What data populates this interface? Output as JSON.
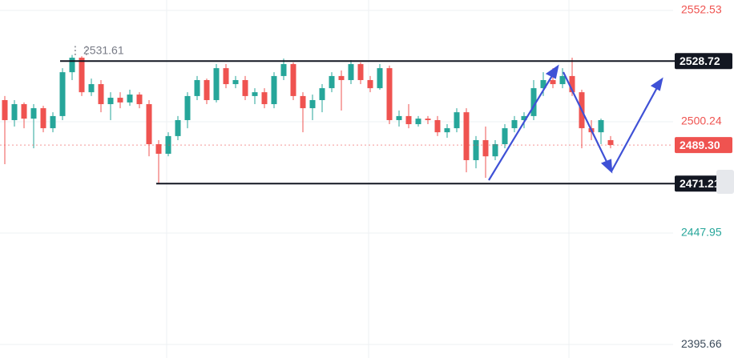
{
  "chart_data": {
    "type": "candlestick",
    "up_color": "#26a69a",
    "down_color": "#ef5350",
    "open": [
      2510.4,
      2501.0,
      2508.5,
      2501.7,
      2506.6,
      2497.2,
      2502.9,
      2523.5,
      2530.3,
      2514.1,
      2517.9,
      2508.5,
      2511.5,
      2509.3,
      2513.0,
      2508.5,
      2489.7,
      2485.2,
      2493.5,
      2501.0,
      2512.3,
      2519.8,
      2510.4,
      2525.4,
      2517.9,
      2519.8,
      2512.3,
      2514.1,
      2508.5,
      2521.7,
      2527.3,
      2512.3,
      2506.6,
      2510.4,
      2516.0,
      2521.7,
      2519.8,
      2527.3,
      2519.8,
      2516.0,
      2525.4,
      2501.0,
      2502.9,
      2499.1,
      2501.7,
      2501.0,
      2495.3,
      2497.2,
      2504.7,
      2482.2,
      2491.6,
      2484.0,
      2489.7,
      2497.2,
      2501.0,
      2502.9,
      2516.0,
      2519.8,
      2517.9,
      2521.7,
      2514.1,
      2497.2,
      2495.3,
      2491.6
    ],
    "high": [
      2512.3,
      2510.4,
      2509.3,
      2508.5,
      2507.7,
      2504.7,
      2525.4,
      2531.61,
      2531.0,
      2520.5,
      2519.8,
      2514.1,
      2514.1,
      2515.3,
      2514.1,
      2510.4,
      2491.6,
      2495.3,
      2502.9,
      2514.1,
      2521.7,
      2520.5,
      2527.3,
      2527.3,
      2521.7,
      2521.7,
      2516.0,
      2516.0,
      2523.5,
      2529.9,
      2528.1,
      2514.1,
      2513.0,
      2517.9,
      2523.5,
      2524.3,
      2529.2,
      2528.1,
      2521.7,
      2527.3,
      2526.6,
      2505.5,
      2508.5,
      2502.9,
      2502.9,
      2502.9,
      2499.1,
      2506.6,
      2506.6,
      2493.5,
      2498.0,
      2491.6,
      2499.1,
      2502.9,
      2504.7,
      2519.8,
      2523.5,
      2525.4,
      2525.4,
      2530.3,
      2515.3,
      2501.0,
      2501.7,
      2493.5
    ],
    "low": [
      2480.3,
      2498.0,
      2497.2,
      2487.8,
      2495.3,
      2495.3,
      2501.0,
      2519.8,
      2512.3,
      2512.3,
      2504.7,
      2501.0,
      2506.6,
      2507.7,
      2506.6,
      2484.0,
      2471.2,
      2484.0,
      2491.6,
      2497.2,
      2510.4,
      2508.5,
      2509.3,
      2516.0,
      2516.0,
      2510.4,
      2508.5,
      2506.6,
      2506.6,
      2519.8,
      2510.4,
      2495.3,
      2501.0,
      2504.7,
      2514.1,
      2505.5,
      2517.9,
      2517.9,
      2514.1,
      2515.3,
      2499.1,
      2498.0,
      2497.2,
      2498.0,
      2499.1,
      2493.5,
      2492.7,
      2495.3,
      2476.5,
      2478.4,
      2473.9,
      2482.2,
      2487.8,
      2495.3,
      2497.2,
      2501.0,
      2512.3,
      2516.0,
      2516.0,
      2512.3,
      2487.8,
      2491.6,
      2489.7,
      2487.8
    ],
    "close": [
      2501.0,
      2508.5,
      2501.7,
      2506.6,
      2497.2,
      2502.9,
      2523.5,
      2530.3,
      2514.1,
      2517.9,
      2508.5,
      2511.5,
      2509.3,
      2513.0,
      2508.5,
      2489.7,
      2485.2,
      2493.5,
      2501.0,
      2512.3,
      2519.8,
      2510.4,
      2525.4,
      2517.9,
      2519.8,
      2512.3,
      2514.1,
      2508.5,
      2521.7,
      2527.3,
      2512.3,
      2506.6,
      2510.4,
      2516.0,
      2521.7,
      2519.8,
      2527.3,
      2519.8,
      2516.0,
      2525.4,
      2501.0,
      2502.9,
      2499.1,
      2501.7,
      2501.0,
      2495.3,
      2497.2,
      2504.7,
      2482.2,
      2491.6,
      2484.0,
      2489.7,
      2497.2,
      2501.0,
      2502.9,
      2516.0,
      2519.8,
      2517.9,
      2521.7,
      2514.1,
      2497.2,
      2495.3,
      2501.0,
      2489.3
    ],
    "ylim": [
      2389.3,
      2557.4
    ],
    "yticks": [
      2552.53,
      2500.24,
      2447.95,
      2395.66
    ],
    "ytick_colors": [
      "#ef5350",
      "#ef5350",
      "#26a69a",
      "#3b4a5a"
    ],
    "grid": true,
    "levels": [
      2528.72,
      2471.21
    ],
    "last_price": {
      "value": 2489.3,
      "label": "2489.30"
    }
  }
}
